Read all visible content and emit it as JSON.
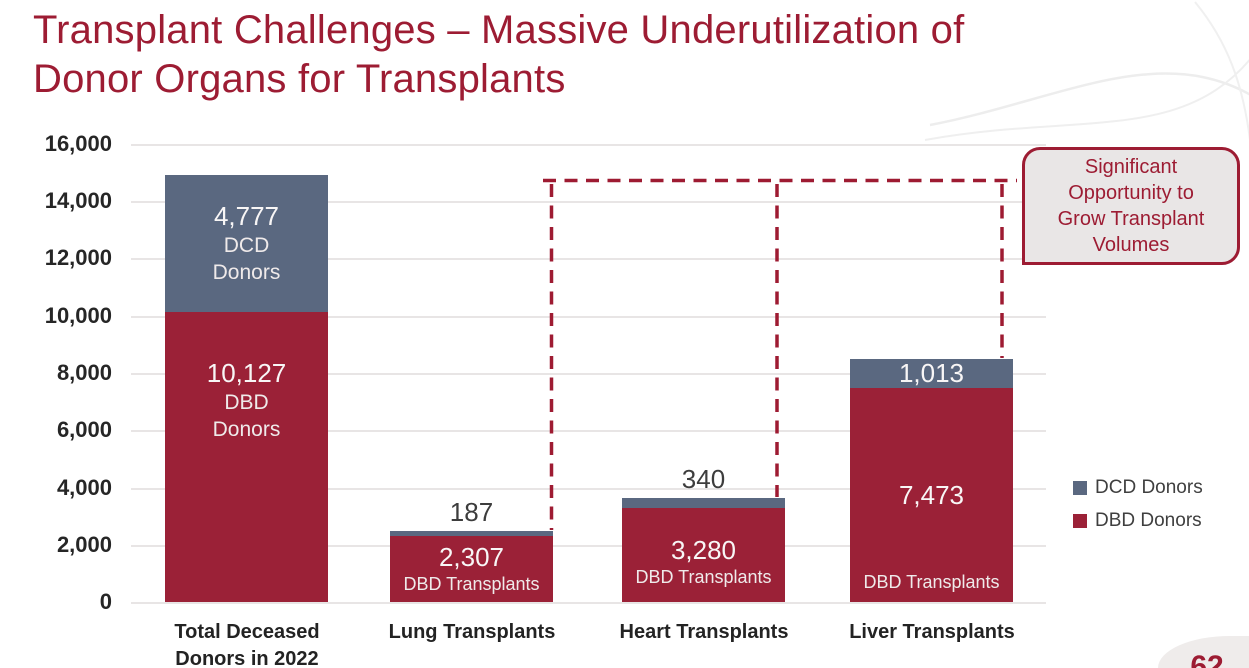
{
  "slide": {
    "title_line1": "Transplant Challenges – Massive Underutilization of",
    "title_line2": "Donor Organs for Transplants",
    "page_number": "62"
  },
  "callout": {
    "lines": [
      "Significant",
      "Opportunity to",
      "Grow Transplant",
      "Volumes"
    ]
  },
  "legend": [
    {
      "label": "DCD Donors",
      "color": "#5a6880"
    },
    {
      "label": "DBD Donors",
      "color": "#9b2137"
    }
  ],
  "chart_data": {
    "type": "bar",
    "stacked": true,
    "title": "",
    "xlabel": "",
    "ylabel": "",
    "ylim": [
      0,
      16000
    ],
    "ytick_interval": 2000,
    "grid": true,
    "legend_position": "right",
    "categories": [
      "Total Deceased Donors in 2022",
      "Lung Transplants",
      "Heart Transplants",
      "Liver Transplants"
    ],
    "series": [
      {
        "name": "DBD Donors",
        "color": "#9b2137",
        "values": [
          10127,
          2307,
          3280,
          7473
        ]
      },
      {
        "name": "DCD Donors",
        "color": "#5a6880",
        "values": [
          4777,
          187,
          340,
          1013
        ]
      }
    ],
    "annotations": [
      "dashed red lines connect tops of Lung, Heart and Liver bars to the Total Deceased Donors bar height, leading to callout"
    ]
  },
  "chart": {
    "yticks": [
      "16,000",
      "14,000",
      "12,000",
      "10,000",
      "8,000",
      "6,000",
      "4,000",
      "2,000",
      "0"
    ],
    "bars": [
      {
        "cat1": "Total Deceased",
        "cat2": "Donors in 2022",
        "dcd_value": "4,777",
        "dcd_sub1": "DCD",
        "dcd_sub2": "Donors",
        "dbd_value": "10,127",
        "dbd_sub1": "DBD",
        "dbd_sub2": "Donors"
      },
      {
        "cat1": "Lung Transplants",
        "above_value": "187",
        "dbd_value": "2,307",
        "dbd_sub1": "DBD Transplants"
      },
      {
        "cat1": "Heart Transplants",
        "above_value": "340",
        "dbd_value": "3,280",
        "dbd_sub1": "DBD Transplants"
      },
      {
        "cat1": "Liver Transplants",
        "dcd_value": "1,013",
        "dbd_value": "7,473",
        "dbd_sub1": "DBD Transplants"
      }
    ]
  }
}
